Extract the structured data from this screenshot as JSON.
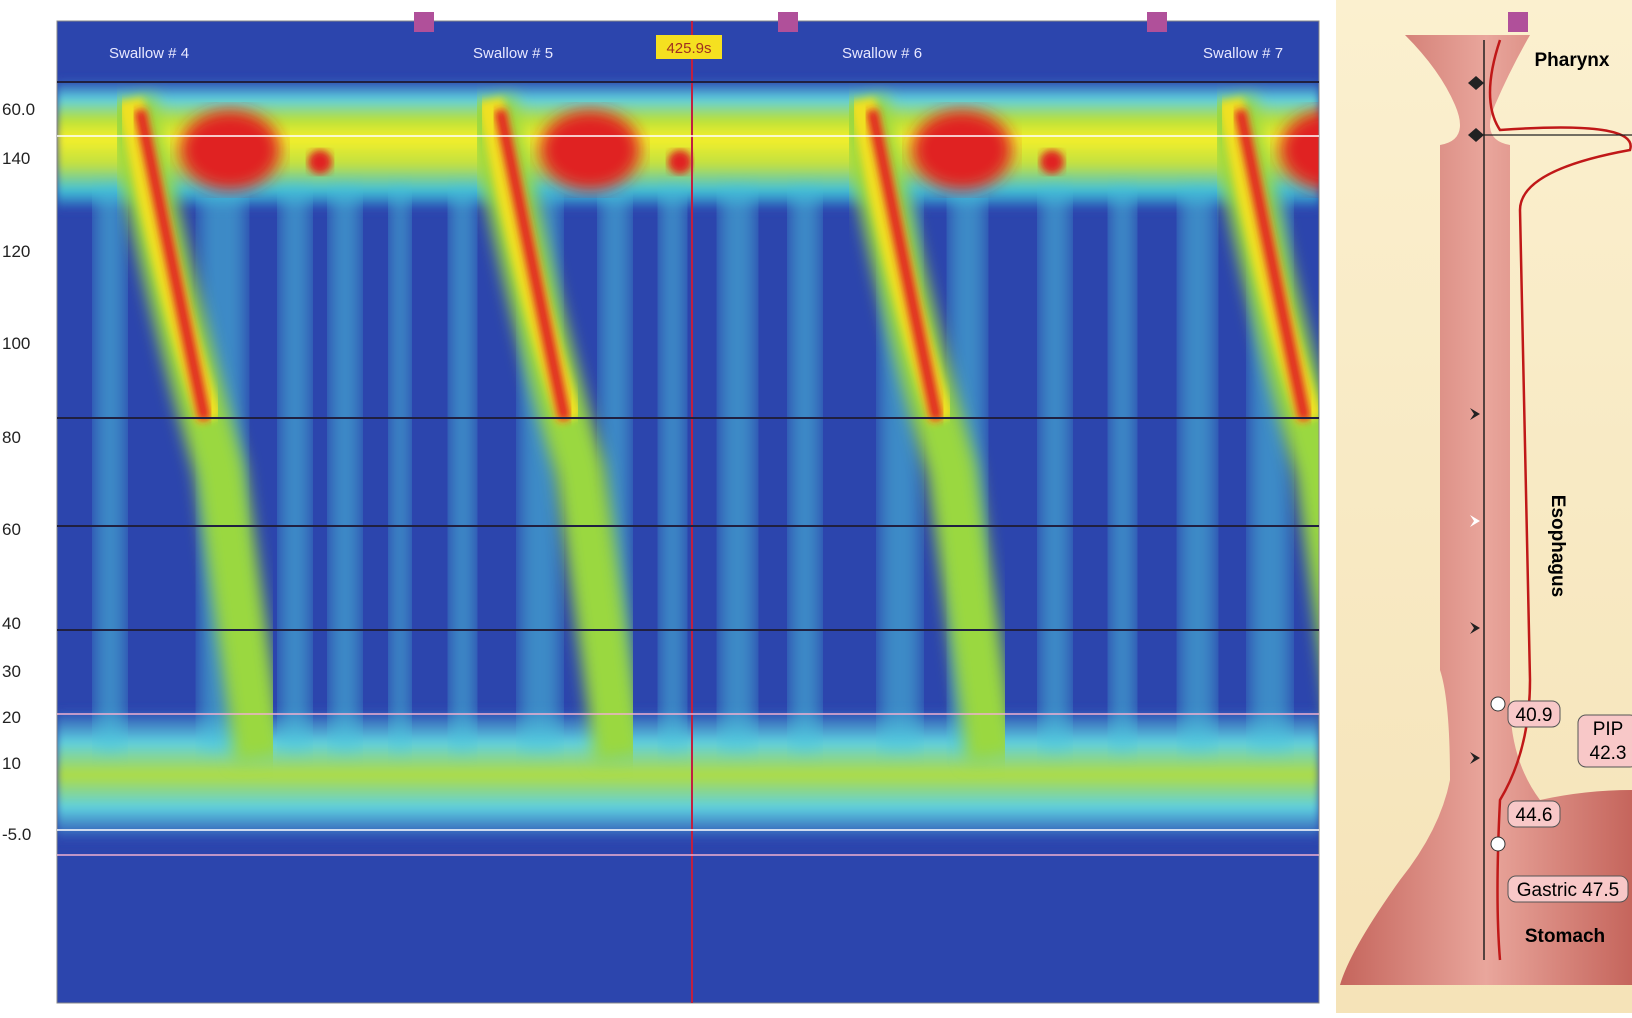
{
  "scale_labels": [
    "60.0",
    "140",
    "120",
    "100",
    "80",
    "60",
    "40",
    "30",
    "20",
    "10",
    "-5.0"
  ],
  "plot": {
    "swallows": [
      "Swallow # 4",
      "Swallow # 5",
      "Swallow # 6",
      "Swallow # 7"
    ],
    "time_marker": "425.9s"
  },
  "anatomy": {
    "pharynx": "Pharynx",
    "esophagus": "Esophagus",
    "stomach": "Stomach",
    "tags": [
      "40.9",
      "PIP 42.3",
      "44.6",
      "Gastric 47.5"
    ]
  }
}
